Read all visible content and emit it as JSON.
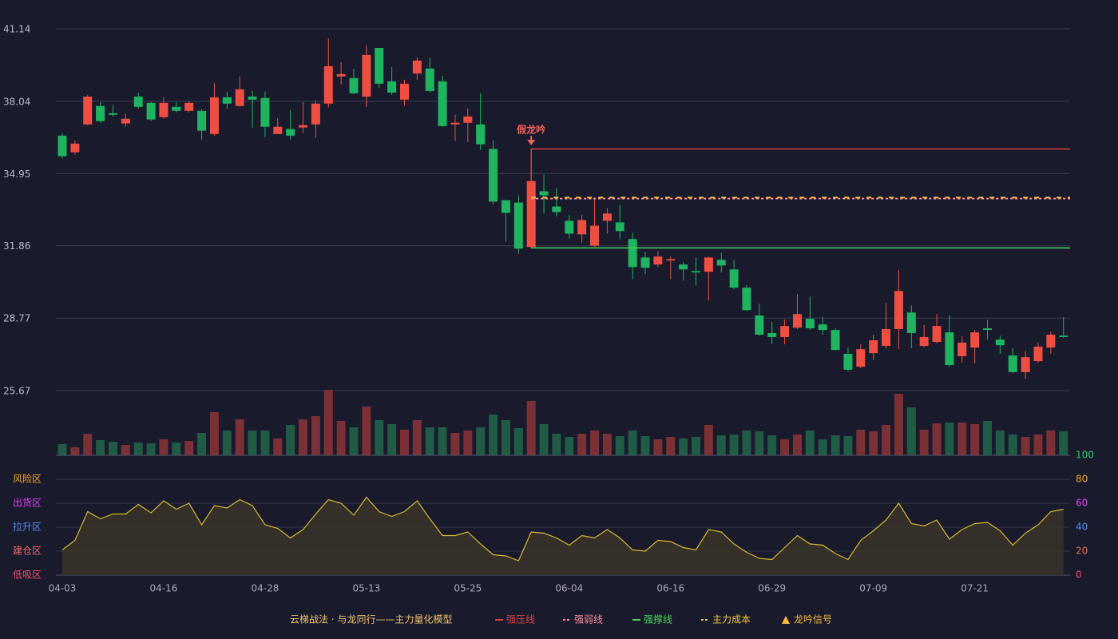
{
  "chart_data": [
    {
      "type": "candlestick",
      "title": "云梯战法 · 与龙同行——主力量化模型",
      "ylim": [
        25.67,
        41.14
      ],
      "yticks": [
        41.14,
        38.04,
        34.95,
        31.86,
        28.77,
        25.67
      ],
      "grid": true,
      "up_color": "#ef4f43",
      "down_color": "#1fb45f",
      "open": [
        36.57,
        35.86,
        37.05,
        37.84,
        37.53,
        37.09,
        38.24,
        37.97,
        37.36,
        37.8,
        37.63,
        37.63,
        36.64,
        38.21,
        37.84,
        38.24,
        38.18,
        36.64,
        36.85,
        36.92,
        37.05,
        37.94,
        39.1,
        39.03,
        38.24,
        40.32,
        38.89,
        38.11,
        39.23,
        39.44,
        38.89,
        37.05,
        37.12,
        37.05,
        36.0,
        33.81,
        33.71,
        31.81,
        34.19,
        33.54,
        32.93,
        32.35,
        31.87,
        32.93,
        32.86,
        32.15,
        31.36,
        31.06,
        31.23,
        31.06,
        30.78,
        30.75,
        31.26,
        30.85,
        30.07,
        28.88,
        28.13,
        27.96,
        28.36,
        28.74,
        28.5,
        28.26,
        27.24,
        26.69,
        27.27,
        27.58,
        28.3,
        29.01,
        27.58,
        27.75,
        28.16,
        27.14,
        27.51,
        28.33,
        27.85,
        27.17,
        26.46,
        26.93,
        27.51,
        28.02
      ],
      "high": [
        36.68,
        36.37,
        38.31,
        38.01,
        37.87,
        37.5,
        38.41,
        38.04,
        38.21,
        38.01,
        38.04,
        37.7,
        38.82,
        38.45,
        39.1,
        38.48,
        38.45,
        37.32,
        37.66,
        38.01,
        38.07,
        40.73,
        39.71,
        39.44,
        40.42,
        40.32,
        39.51,
        38.96,
        39.91,
        39.91,
        39.13,
        37.46,
        37.73,
        38.38,
        36.37,
        33.81,
        34.02,
        36.0,
        34.91,
        34.33,
        33.17,
        33.2,
        33.92,
        33.47,
        33.61,
        32.42,
        31.6,
        31.63,
        31.4,
        31.16,
        31.36,
        31.4,
        31.57,
        31.26,
        30.17,
        29.39,
        28.6,
        28.7,
        29.8,
        29.69,
        28.81,
        28.33,
        27.51,
        27.65,
        28.06,
        29.42,
        30.82,
        29.32,
        28.47,
        28.94,
        28.88,
        27.99,
        28.26,
        28.7,
        28.02,
        27.48,
        27.38,
        27.72,
        28.19,
        28.81
      ],
      "low": [
        35.59,
        35.76,
        37.02,
        37.12,
        37.39,
        36.95,
        37.73,
        37.19,
        37.29,
        37.56,
        37.56,
        36.4,
        36.57,
        37.73,
        37.8,
        36.92,
        36.51,
        36.64,
        36.4,
        36.68,
        36.47,
        37.77,
        38.76,
        38.35,
        37.8,
        38.62,
        38.31,
        37.84,
        38.96,
        38.41,
        36.95,
        36.34,
        36.3,
        35.96,
        33.64,
        32.04,
        31.53,
        31.74,
        33.24,
        33.1,
        32.18,
        31.98,
        31.81,
        32.38,
        32.15,
        30.44,
        30.65,
        30.95,
        30.44,
        30.37,
        30.17,
        29.52,
        30.72,
        30.0,
        29.08,
        28.02,
        27.65,
        27.65,
        28.3,
        28.26,
        28.06,
        27.38,
        26.49,
        26.63,
        26.97,
        27.48,
        27.44,
        27.48,
        27.51,
        27.68,
        26.69,
        26.86,
        26.83,
        27.85,
        27.24,
        26.42,
        26.18,
        26.86,
        27.24,
        27.92
      ],
      "close": [
        35.69,
        36.23,
        38.24,
        37.19,
        37.46,
        37.29,
        37.8,
        37.26,
        37.97,
        37.63,
        37.97,
        36.78,
        38.21,
        37.94,
        38.55,
        38.11,
        36.95,
        36.95,
        36.57,
        37.02,
        37.94,
        39.54,
        39.2,
        38.38,
        40.02,
        38.79,
        38.41,
        38.79,
        39.78,
        38.48,
        36.98,
        37.12,
        37.39,
        36.2,
        33.75,
        33.27,
        31.74,
        34.63,
        34.02,
        33.3,
        32.38,
        32.96,
        32.72,
        33.24,
        32.49,
        30.95,
        30.92,
        31.4,
        31.29,
        30.85,
        30.72,
        31.36,
        31.02,
        30.07,
        29.11,
        28.06,
        27.96,
        28.43,
        28.94,
        28.33,
        28.26,
        27.41,
        26.56,
        27.44,
        27.82,
        28.3,
        29.93,
        28.13,
        27.96,
        28.43,
        26.76,
        27.72,
        28.16,
        28.26,
        27.61,
        26.46,
        27.1,
        27.55,
        28.06,
        27.96
      ],
      "levels": [
        {
          "name": "强压线",
          "value": 36.0,
          "start_index": 37,
          "color": "#d9413f",
          "style": "solid"
        },
        {
          "name": "强弱线",
          "value": 33.88,
          "start_index": 37,
          "color": "#ff8a9a",
          "style": "dashed"
        },
        {
          "name": "强撑线",
          "value": 31.77,
          "start_index": 37,
          "color": "#4cd35a",
          "style": "solid"
        },
        {
          "name": "主力成本",
          "value": 33.92,
          "start_index": 37,
          "color": "#f5c542",
          "style": "dashed"
        }
      ],
      "signal": {
        "name": "龙吟信号",
        "label": "假龙吟",
        "index": 37,
        "color": "#f5b942",
        "label_color": "#f0605a"
      }
    },
    {
      "type": "volume",
      "values": [
        14,
        10,
        27,
        19,
        17,
        13,
        16,
        15,
        20,
        16,
        18,
        28,
        54,
        31,
        45,
        31,
        31,
        21,
        38,
        45,
        49,
        82,
        43,
        35,
        61,
        44,
        39,
        32,
        44,
        35,
        35,
        28,
        31,
        35,
        51,
        44,
        34,
        68,
        39,
        27,
        23,
        27,
        31,
        27,
        24,
        31,
        24,
        20,
        23,
        21,
        23,
        38,
        25,
        26,
        31,
        30,
        25,
        20,
        26,
        31,
        20,
        25,
        24,
        32,
        30,
        38,
        77,
        60,
        32,
        40,
        41,
        41,
        39,
        43,
        31,
        26,
        23,
        26,
        31,
        30
      ],
      "up_color": "#7a3035",
      "down_color": "#1f5b45"
    },
    {
      "type": "area",
      "categories": [
        "04-03",
        null,
        null,
        null,
        null,
        null,
        null,
        null,
        "04-16",
        null,
        null,
        null,
        null,
        null,
        null,
        null,
        "04-28",
        null,
        null,
        null,
        null,
        null,
        null,
        null,
        "05-13",
        null,
        null,
        null,
        null,
        null,
        null,
        null,
        "05-25",
        null,
        null,
        null,
        null,
        null,
        null,
        null,
        "06-04",
        null,
        null,
        null,
        null,
        null,
        null,
        null,
        "06-16",
        null,
        null,
        null,
        null,
        null,
        null,
        null,
        "06-29",
        null,
        null,
        null,
        null,
        null,
        null,
        null,
        "07-09",
        null,
        null,
        null,
        null,
        null,
        null,
        null,
        "07-21",
        null,
        null,
        null,
        null,
        null,
        null,
        null
      ],
      "values": [
        21,
        29,
        53,
        47,
        51,
        51,
        59,
        52,
        62,
        55,
        60,
        42,
        58,
        56,
        63,
        58,
        42,
        39,
        31,
        38,
        51,
        63,
        60,
        50,
        65,
        53,
        49,
        53,
        62,
        47,
        33,
        33,
        36,
        26,
        17,
        16,
        12,
        36,
        35,
        31,
        25,
        33,
        31,
        38,
        31,
        21,
        20,
        29,
        28,
        23,
        21,
        38,
        36,
        26,
        19,
        14,
        13,
        23,
        33,
        26,
        25,
        18,
        13,
        29,
        37,
        46,
        60,
        43,
        41,
        46,
        30,
        38,
        43,
        44,
        37,
        25,
        35,
        42,
        53,
        55
      ],
      "color": "#d9b92e",
      "ylim": [
        0,
        100
      ],
      "yticks": [
        0,
        20,
        40,
        60,
        80,
        100
      ],
      "ytick_colors": [
        "#f0506e",
        "#f06a4a",
        "#4f8ff7",
        "#e040fb",
        "#f5a623",
        "#2ecc71"
      ],
      "zones": [
        {
          "label": "风险区",
          "value": 80,
          "color": "#f5a623"
        },
        {
          "label": "出货区",
          "value": 60,
          "color": "#e040fb"
        },
        {
          "label": "拉升区",
          "value": 40,
          "color": "#4f8ff7"
        },
        {
          "label": "建仓区",
          "value": 20,
          "color": "#f06a6a"
        },
        {
          "label": "低吸区",
          "value": 0,
          "color": "#f0506e"
        }
      ]
    }
  ]
}
